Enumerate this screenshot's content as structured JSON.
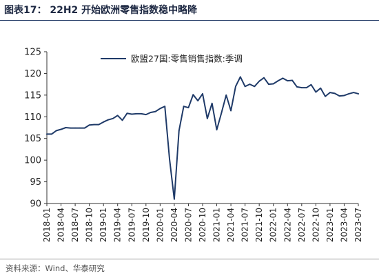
{
  "figure": {
    "title": "图表17：  22H2 开始欧洲零售指数稳中略降",
    "source": "资料来源：Wind、华泰研究"
  },
  "chart_data": {
    "type": "line",
    "title": "",
    "xlabel": "",
    "ylabel": "",
    "ylim": [
      90,
      125
    ],
    "yticks": [
      90,
      95,
      100,
      105,
      110,
      115,
      120,
      125
    ],
    "xticks": [
      "2018-01",
      "2018-04",
      "2018-07",
      "2018-10",
      "2019-01",
      "2019-04",
      "2019-07",
      "2019-10",
      "2020-01",
      "2020-04",
      "2020-07",
      "2020-10",
      "2021-01",
      "2021-04",
      "2021-07",
      "2021-10",
      "2022-01",
      "2022-04",
      "2022-07",
      "2022-10",
      "2023-01",
      "2023-04",
      "2023-07"
    ],
    "grid": false,
    "legend_position": "top-left",
    "colors": {
      "line": "#1f3a68"
    },
    "series": [
      {
        "name": "欧盟27国:零售销售指数:季调",
        "x": [
          "2018-01",
          "2018-02",
          "2018-03",
          "2018-04",
          "2018-05",
          "2018-06",
          "2018-07",
          "2018-08",
          "2018-09",
          "2018-10",
          "2018-11",
          "2018-12",
          "2019-01",
          "2019-02",
          "2019-03",
          "2019-04",
          "2019-05",
          "2019-06",
          "2019-07",
          "2019-08",
          "2019-09",
          "2019-10",
          "2019-11",
          "2019-12",
          "2020-01",
          "2020-02",
          "2020-03",
          "2020-04",
          "2020-05",
          "2020-06",
          "2020-07",
          "2020-08",
          "2020-09",
          "2020-10",
          "2020-11",
          "2020-12",
          "2021-01",
          "2021-02",
          "2021-03",
          "2021-04",
          "2021-05",
          "2021-06",
          "2021-07",
          "2021-08",
          "2021-09",
          "2021-10",
          "2021-11",
          "2021-12",
          "2022-01",
          "2022-02",
          "2022-03",
          "2022-04",
          "2022-05",
          "2022-06",
          "2022-07",
          "2022-08",
          "2022-09",
          "2022-10",
          "2022-11",
          "2022-12",
          "2023-01",
          "2023-02",
          "2023-03",
          "2023-04",
          "2023-05",
          "2023-06",
          "2023-07"
        ],
        "values": [
          106.0,
          106.0,
          106.8,
          107.1,
          107.5,
          107.4,
          107.4,
          107.4,
          107.4,
          108.1,
          108.2,
          108.2,
          108.8,
          109.3,
          109.6,
          110.3,
          109.2,
          110.8,
          110.6,
          110.7,
          110.7,
          110.5,
          111.0,
          111.2,
          111.9,
          112.4,
          100.2,
          91.0,
          106.8,
          112.4,
          112.1,
          115.1,
          113.7,
          115.3,
          109.6,
          113.1,
          107.0,
          110.9,
          115.0,
          111.4,
          117.0,
          119.2,
          117.0,
          117.5,
          117.0,
          118.2,
          119.0,
          117.5,
          117.6,
          118.3,
          118.9,
          118.3,
          118.4,
          116.9,
          116.7,
          116.7,
          117.4,
          115.7,
          116.6,
          114.7,
          115.6,
          115.4,
          114.8,
          114.9,
          115.3,
          115.6,
          115.3
        ]
      }
    ]
  }
}
